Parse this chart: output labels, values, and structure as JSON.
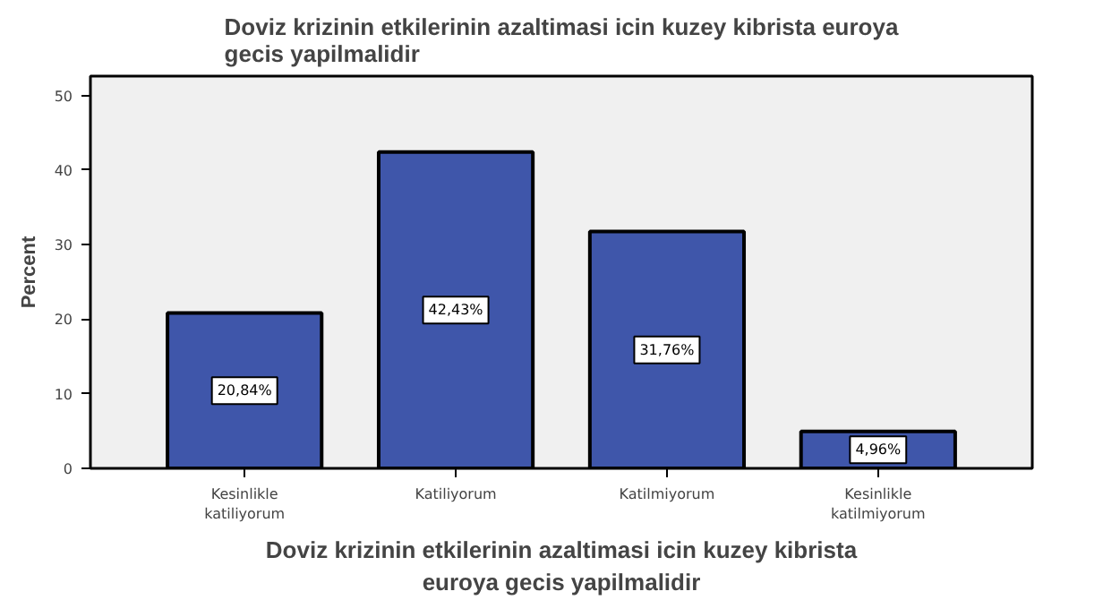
{
  "chart_data": {
    "type": "bar",
    "title": "Doviz krizinin etkilerinin azaltimasi icin kuzey kibrista euroya\ngecis yapilmalidir",
    "xlabel": "Doviz krizinin etkilerinin azaltimasi icin kuzey kibrista\neuroya gecis yapilmalidir",
    "ylabel": "Percent",
    "categories": [
      "Kesinlikle\nkatiliyorum",
      "Katiliyorum",
      "Katilmiyorum",
      "Kesinlikle\nkatilmiyorum"
    ],
    "values": [
      20.84,
      42.43,
      31.76,
      4.96
    ],
    "color": "#3f56aa",
    "value_labels": [
      "20,84%",
      "42,43%",
      "31,76%",
      "4,96%"
    ],
    "ylim": [
      0,
      52.6
    ],
    "yticks": [
      0,
      10,
      20,
      30,
      40,
      50
    ],
    "grid": false
  }
}
